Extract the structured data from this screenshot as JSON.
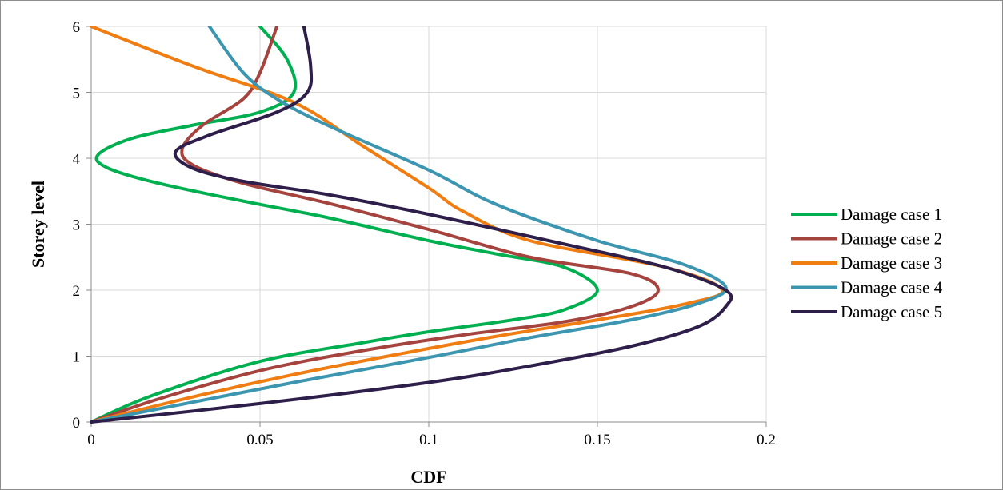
{
  "chart_data": {
    "type": "line",
    "title": "",
    "xlabel": "CDF",
    "ylabel": "Storey level",
    "xlim": [
      0,
      0.2
    ],
    "ylim": [
      0,
      6
    ],
    "xticks": [
      "0",
      "0.05",
      "0.1",
      "0.15",
      "0.2"
    ],
    "yticks": [
      "0",
      "1",
      "2",
      "3",
      "4",
      "5",
      "6"
    ],
    "grid": true,
    "legend_position": "right",
    "series": [
      {
        "name": "Damage case 1",
        "color": "#00b050",
        "points": [
          [
            0,
            0
          ],
          [
            0.018,
            0.4
          ],
          [
            0.05,
            0.92
          ],
          [
            0.08,
            1.2
          ],
          [
            0.1,
            1.37
          ],
          [
            0.125,
            1.55
          ],
          [
            0.14,
            1.7
          ],
          [
            0.15,
            2.0
          ],
          [
            0.14,
            2.35
          ],
          [
            0.12,
            2.55
          ],
          [
            0.1,
            2.75
          ],
          [
            0.07,
            3.1
          ],
          [
            0.045,
            3.35
          ],
          [
            0.02,
            3.62
          ],
          [
            0.005,
            3.85
          ],
          [
            0.002,
            4.05
          ],
          [
            0.012,
            4.3
          ],
          [
            0.03,
            4.5
          ],
          [
            0.05,
            4.7
          ],
          [
            0.06,
            5.0
          ],
          [
            0.058,
            5.5
          ],
          [
            0.05,
            6.0
          ]
        ]
      },
      {
        "name": "Damage case 2",
        "color": "#a5443f",
        "points": [
          [
            0,
            0
          ],
          [
            0.02,
            0.35
          ],
          [
            0.05,
            0.78
          ],
          [
            0.08,
            1.08
          ],
          [
            0.11,
            1.32
          ],
          [
            0.14,
            1.52
          ],
          [
            0.16,
            1.75
          ],
          [
            0.168,
            2.0
          ],
          [
            0.16,
            2.25
          ],
          [
            0.13,
            2.5
          ],
          [
            0.1,
            2.92
          ],
          [
            0.07,
            3.32
          ],
          [
            0.045,
            3.62
          ],
          [
            0.03,
            3.9
          ],
          [
            0.027,
            4.15
          ],
          [
            0.033,
            4.5
          ],
          [
            0.045,
            4.9
          ],
          [
            0.05,
            5.3
          ],
          [
            0.055,
            6.0
          ]
        ]
      },
      {
        "name": "Damage case 3",
        "color": "#f07d12",
        "points": [
          [
            0,
            0
          ],
          [
            0.03,
            0.38
          ],
          [
            0.06,
            0.72
          ],
          [
            0.09,
            1.02
          ],
          [
            0.12,
            1.3
          ],
          [
            0.15,
            1.55
          ],
          [
            0.175,
            1.78
          ],
          [
            0.187,
            2.0
          ],
          [
            0.17,
            2.35
          ],
          [
            0.13,
            2.75
          ],
          [
            0.11,
            3.2
          ],
          [
            0.1,
            3.55
          ],
          [
            0.08,
            4.2
          ],
          [
            0.06,
            4.85
          ],
          [
            0.03,
            5.4
          ],
          [
            0,
            6.0
          ]
        ]
      },
      {
        "name": "Damage case 4",
        "color": "#3d96b0",
        "points": [
          [
            0,
            0
          ],
          [
            0.03,
            0.3
          ],
          [
            0.06,
            0.6
          ],
          [
            0.1,
            0.98
          ],
          [
            0.13,
            1.28
          ],
          [
            0.16,
            1.55
          ],
          [
            0.18,
            1.8
          ],
          [
            0.188,
            2.05
          ],
          [
            0.175,
            2.4
          ],
          [
            0.15,
            2.75
          ],
          [
            0.12,
            3.3
          ],
          [
            0.1,
            3.82
          ],
          [
            0.07,
            4.5
          ],
          [
            0.055,
            4.9
          ],
          [
            0.045,
            5.3
          ],
          [
            0.035,
            6.0
          ]
        ]
      },
      {
        "name": "Damage case 5",
        "color": "#2e1f4a",
        "points": [
          [
            0,
            0
          ],
          [
            0.05,
            0.28
          ],
          [
            0.1,
            0.6
          ],
          [
            0.13,
            0.85
          ],
          [
            0.16,
            1.15
          ],
          [
            0.18,
            1.45
          ],
          [
            0.188,
            1.75
          ],
          [
            0.188,
            2.0
          ],
          [
            0.17,
            2.35
          ],
          [
            0.14,
            2.7
          ],
          [
            0.1,
            3.15
          ],
          [
            0.07,
            3.45
          ],
          [
            0.045,
            3.65
          ],
          [
            0.03,
            3.85
          ],
          [
            0.025,
            4.1
          ],
          [
            0.035,
            4.35
          ],
          [
            0.055,
            4.7
          ],
          [
            0.064,
            5.0
          ],
          [
            0.065,
            5.4
          ],
          [
            0.063,
            6.0
          ]
        ]
      }
    ]
  }
}
